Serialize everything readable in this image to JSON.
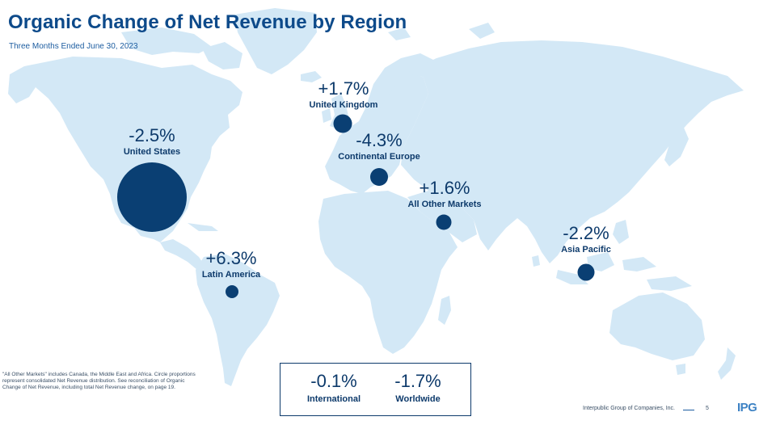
{
  "header": {
    "title": "Organic Change of Net Revenue by Region",
    "subtitle": "Three Months Ended June 30, 2023"
  },
  "regions": [
    {
      "name": "United States",
      "value": "-2.5%"
    },
    {
      "name": "Latin America",
      "value": "+6.3%"
    },
    {
      "name": "United Kingdom",
      "value": "+1.7%"
    },
    {
      "name": "Continental Europe",
      "value": "-4.3%"
    },
    {
      "name": "All Other Markets",
      "value": "+1.6%"
    },
    {
      "name": "Asia Pacific",
      "value": "-2.2%"
    }
  ],
  "summary": [
    {
      "name": "International",
      "value": "-0.1%"
    },
    {
      "name": "Worldwide",
      "value": "-1.7%"
    }
  ],
  "footnote": "\"All Other Markets\" includes Canada, the Middle East and Africa. Circle proportions represent consolidated Net Revenue distribution. See reconciliation of Organic Change of Net Revenue, including total Net Revenue change, on page 19.",
  "footer": {
    "company": "Interpublic Group of Companies, Inc.",
    "page": "5",
    "logo": "IPG"
  },
  "colors": {
    "land": "#d3e8f6",
    "bubble": "#0a3f73",
    "title": "#0d4a8a",
    "text": "#0d3a6b"
  }
}
